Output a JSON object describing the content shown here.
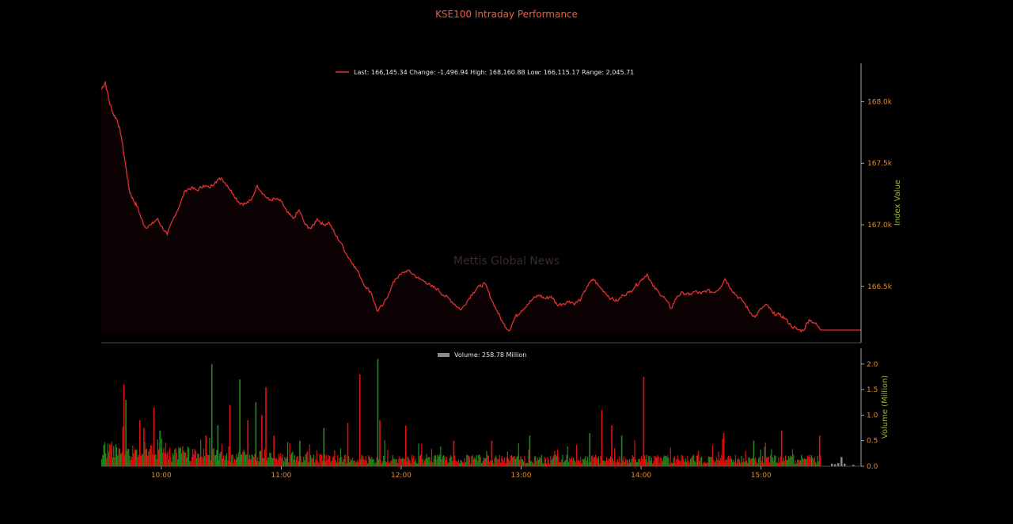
{
  "chart_data": [
    {
      "type": "line",
      "title": "KSE100 Intraday Performance",
      "legend": "Last: 166,145.34 Change: -1,496.94 High: 168,160.88 Low: 166,115.17 Range: 2,045.71",
      "ylabel": "Index Value",
      "ylim": [
        166100,
        168260
      ],
      "yticks": [
        166500,
        167000,
        167500,
        168000
      ],
      "ytick_labels": [
        "166.5k",
        "167.0k",
        "167.5k",
        "168.0k"
      ],
      "xlim": [
        "09:30",
        "15:50"
      ],
      "xticks": [
        "10:00",
        "11:00",
        "12:00",
        "13:00",
        "14:00",
        "15:00"
      ],
      "series": [
        {
          "name": "Last: 166,145.34 Change: -1,496.94 High: 168,160.88 Low: 166,115.17 Range: 2,045.71",
          "color": "#e03030",
          "points": [
            [
              "09:30",
              168100
            ],
            [
              "09:32",
              168160
            ],
            [
              "09:34",
              168000
            ],
            [
              "09:36",
              167900
            ],
            [
              "09:38",
              167850
            ],
            [
              "09:40",
              167720
            ],
            [
              "09:42",
              167500
            ],
            [
              "09:44",
              167280
            ],
            [
              "09:46",
              167200
            ],
            [
              "09:48",
              167150
            ],
            [
              "09:50",
              167050
            ],
            [
              "09:52",
              166980
            ],
            [
              "09:55",
              167000
            ],
            [
              "09:58",
              167050
            ],
            [
              "10:00",
              166990
            ],
            [
              "10:03",
              166920
            ],
            [
              "10:06",
              167050
            ],
            [
              "10:09",
              167150
            ],
            [
              "10:12",
              167280
            ],
            [
              "10:15",
              167300
            ],
            [
              "10:18",
              167280
            ],
            [
              "10:21",
              167320
            ],
            [
              "10:24",
              167300
            ],
            [
              "10:27",
              167350
            ],
            [
              "10:30",
              167380
            ],
            [
              "10:33",
              167320
            ],
            [
              "10:36",
              167250
            ],
            [
              "10:39",
              167180
            ],
            [
              "10:42",
              167170
            ],
            [
              "10:45",
              167200
            ],
            [
              "10:48",
              167320
            ],
            [
              "10:51",
              167250
            ],
            [
              "10:54",
              167200
            ],
            [
              "10:57",
              167210
            ],
            [
              "11:00",
              167190
            ],
            [
              "11:03",
              167100
            ],
            [
              "11:06",
              167050
            ],
            [
              "11:09",
              167120
            ],
            [
              "11:12",
              167000
            ],
            [
              "11:15",
              166970
            ],
            [
              "11:18",
              167050
            ],
            [
              "11:21",
              167000
            ],
            [
              "11:24",
              167020
            ],
            [
              "11:27",
              166920
            ],
            [
              "11:30",
              166850
            ],
            [
              "11:33",
              166750
            ],
            [
              "11:36",
              166680
            ],
            [
              "11:39",
              166600
            ],
            [
              "11:42",
              166500
            ],
            [
              "11:45",
              166450
            ],
            [
              "11:48",
              166300
            ],
            [
              "11:51",
              166350
            ],
            [
              "11:54",
              166450
            ],
            [
              "11:57",
              166560
            ],
            [
              "12:00",
              166600
            ],
            [
              "12:03",
              166630
            ],
            [
              "12:06",
              166600
            ],
            [
              "12:09",
              166560
            ],
            [
              "12:12",
              166540
            ],
            [
              "12:15",
              166500
            ],
            [
              "12:18",
              166480
            ],
            [
              "12:21",
              166430
            ],
            [
              "12:24",
              166400
            ],
            [
              "12:27",
              166350
            ],
            [
              "12:30",
              166310
            ],
            [
              "12:33",
              166380
            ],
            [
              "12:36",
              166450
            ],
            [
              "12:39",
              166500
            ],
            [
              "12:42",
              166520
            ],
            [
              "12:45",
              166400
            ],
            [
              "12:48",
              166300
            ],
            [
              "12:51",
              166200
            ],
            [
              "12:54",
              166140
            ],
            [
              "12:57",
              166250
            ],
            [
              "13:00",
              166300
            ],
            [
              "13:03",
              166350
            ],
            [
              "13:06",
              166400
            ],
            [
              "13:09",
              166430
            ],
            [
              "13:12",
              166400
            ],
            [
              "13:15",
              166420
            ],
            [
              "13:18",
              166350
            ],
            [
              "13:21",
              166360
            ],
            [
              "13:24",
              166380
            ],
            [
              "13:27",
              166360
            ],
            [
              "13:30",
              166400
            ],
            [
              "13:33",
              166500
            ],
            [
              "13:36",
              166560
            ],
            [
              "13:39",
              166500
            ],
            [
              "13:42",
              166450
            ],
            [
              "13:45",
              166400
            ],
            [
              "13:48",
              166380
            ],
            [
              "13:51",
              166430
            ],
            [
              "13:54",
              166450
            ],
            [
              "13:57",
              166500
            ],
            [
              "14:00",
              166550
            ],
            [
              "14:03",
              166600
            ],
            [
              "14:06",
              166500
            ],
            [
              "14:09",
              166450
            ],
            [
              "14:12",
              166400
            ],
            [
              "14:15",
              166320
            ],
            [
              "14:18",
              166420
            ],
            [
              "14:21",
              166450
            ],
            [
              "14:24",
              166430
            ],
            [
              "14:27",
              166460
            ],
            [
              "14:30",
              166440
            ],
            [
              "14:33",
              166470
            ],
            [
              "14:36",
              166450
            ],
            [
              "14:39",
              166480
            ],
            [
              "14:42",
              166560
            ],
            [
              "14:45",
              166480
            ],
            [
              "14:48",
              166420
            ],
            [
              "14:51",
              166380
            ],
            [
              "14:54",
              166300
            ],
            [
              "14:57",
              166250
            ],
            [
              "15:00",
              166320
            ],
            [
              "15:03",
              166350
            ],
            [
              "15:06",
              166280
            ],
            [
              "15:09",
              166270
            ],
            [
              "15:12",
              166240
            ],
            [
              "15:15",
              166180
            ],
            [
              "15:18",
              166150
            ],
            [
              "15:21",
              166140
            ],
            [
              "15:24",
              166230
            ],
            [
              "15:27",
              166200
            ],
            [
              "15:30",
              166145
            ],
            [
              "15:50",
              166145
            ]
          ]
        }
      ]
    },
    {
      "type": "bar",
      "legend": "Volume: 258.78 Million",
      "ylabel": "Volume (Million)",
      "ylim": [
        0,
        2.2
      ],
      "yticks": [
        0.0,
        0.5,
        1.0,
        1.5,
        2.0
      ],
      "ytick_labels": [
        "0.0",
        "0.5",
        "1.0",
        "1.5",
        "2.0"
      ],
      "xlim": [
        "09:30",
        "15:50"
      ],
      "xticks": [
        "10:00",
        "11:00",
        "12:00",
        "13:00",
        "14:00",
        "15:00"
      ],
      "up_color": "#1f8a1f",
      "down_color": "#e01010",
      "spikes": [
        [
          "09:41",
          1.6,
          "down"
        ],
        [
          "09:42",
          1.3,
          "up"
        ],
        [
          "09:49",
          0.9,
          "down"
        ],
        [
          "09:51",
          0.75,
          "down"
        ],
        [
          "09:56",
          1.15,
          "down"
        ],
        [
          "09:59",
          0.7,
          "up"
        ],
        [
          "10:22",
          0.6,
          "down"
        ],
        [
          "10:25",
          2.0,
          "up"
        ],
        [
          "10:28",
          0.8,
          "up"
        ],
        [
          "10:34",
          1.2,
          "down"
        ],
        [
          "10:39",
          1.7,
          "up"
        ],
        [
          "10:43",
          0.9,
          "down"
        ],
        [
          "10:47",
          1.25,
          "up"
        ],
        [
          "10:50",
          1.0,
          "down"
        ],
        [
          "10:52",
          1.55,
          "down"
        ],
        [
          "10:56",
          0.6,
          "down"
        ],
        [
          "11:09",
          0.5,
          "up"
        ],
        [
          "11:21",
          0.75,
          "up"
        ],
        [
          "11:33",
          0.85,
          "down"
        ],
        [
          "11:39",
          1.8,
          "down"
        ],
        [
          "11:48",
          2.1,
          "up"
        ],
        [
          "11:49",
          0.9,
          "down"
        ],
        [
          "12:02",
          0.8,
          "down"
        ],
        [
          "12:26",
          0.5,
          "down"
        ],
        [
          "12:45",
          0.5,
          "down"
        ],
        [
          "13:04",
          0.6,
          "up"
        ],
        [
          "13:34",
          0.65,
          "up"
        ],
        [
          "13:40",
          1.1,
          "down"
        ],
        [
          "13:45",
          0.8,
          "down"
        ],
        [
          "13:50",
          0.6,
          "up"
        ],
        [
          "14:01",
          1.75,
          "down"
        ],
        [
          "14:41",
          0.65,
          "down"
        ],
        [
          "14:56",
          0.5,
          "up"
        ],
        [
          "15:10",
          0.7,
          "down"
        ],
        [
          "15:29",
          0.6,
          "down"
        ]
      ]
    }
  ],
  "watermark": "Mettis Global News"
}
